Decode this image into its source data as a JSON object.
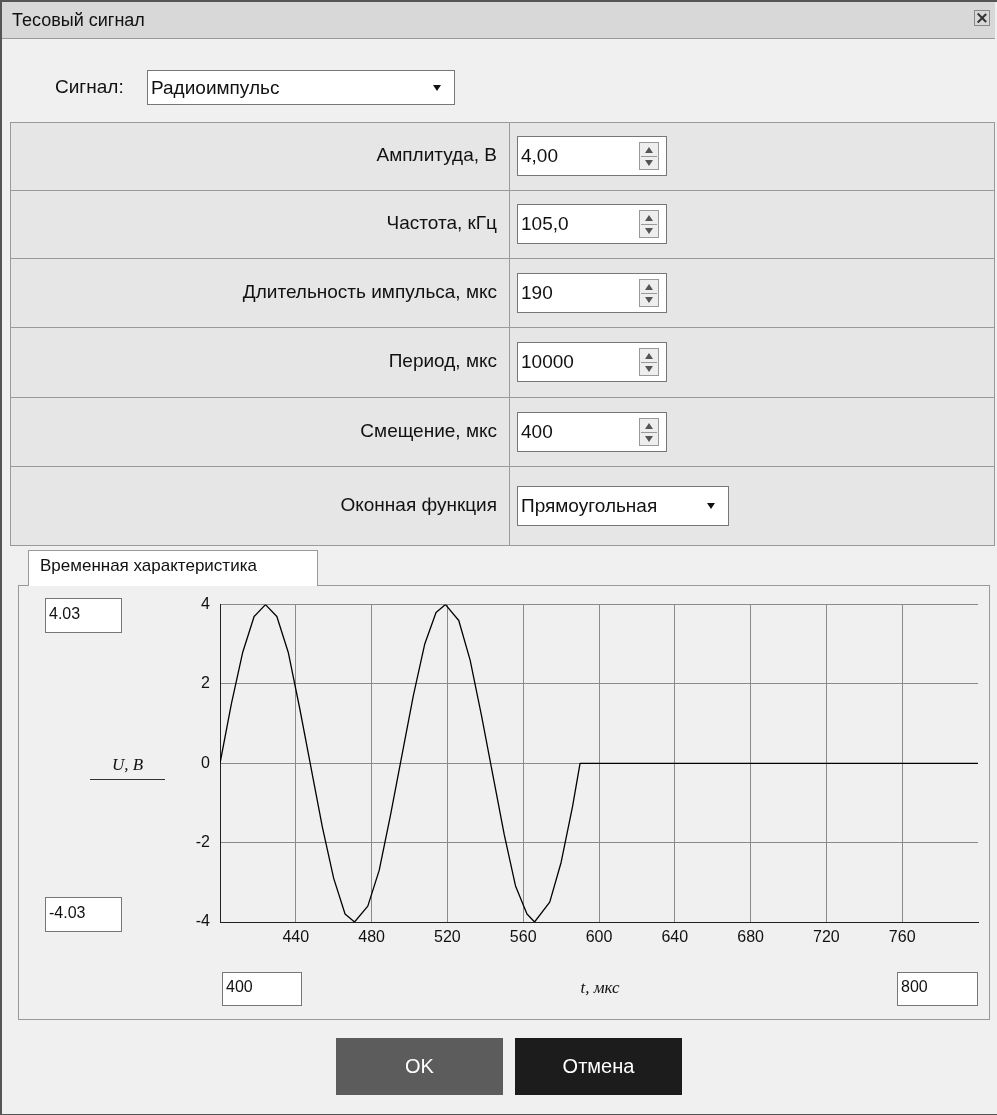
{
  "chart_data": {
    "type": "line",
    "xlabel": "t, мкс",
    "ylabel": "U, В",
    "x": [
      400,
      406,
      412,
      418,
      424,
      430,
      436,
      442,
      448,
      454,
      460,
      466,
      471,
      478,
      484,
      490,
      496,
      502,
      508,
      514,
      519,
      526,
      532,
      538,
      544,
      550,
      556,
      562,
      566,
      574,
      580,
      586,
      590,
      800
    ],
    "series": [
      {
        "color": "#000000",
        "values": [
          0,
          1.5,
          2.8,
          3.7,
          4,
          3.7,
          2.8,
          1.4,
          -0.1,
          -1.6,
          -2.9,
          -3.8,
          -4,
          -3.6,
          -2.7,
          -1.3,
          0.2,
          1.7,
          3,
          3.8,
          4,
          3.6,
          2.6,
          1.2,
          -0.3,
          -1.8,
          -3.1,
          -3.8,
          -4,
          -3.5,
          -2.5,
          -1.1,
          0,
          0
        ]
      }
    ],
    "xlim": [
      400,
      800
    ],
    "ylim": [
      -4,
      4
    ],
    "xticks": [
      440,
      480,
      520,
      560,
      600,
      640,
      680,
      720,
      760
    ],
    "yticks": [
      -4,
      -2,
      0,
      2,
      4
    ],
    "grid": true,
    "marker": "none",
    "line_style": "solid",
    "legend": false,
    "annotations": [
      "Тесовый сигнал",
      "Сигнал:",
      "Радиоимпульс",
      "Амплитуда, В",
      "4,00",
      "Частота, кГц",
      "105,0",
      "Длительность импульса, мкс",
      "190",
      "Период, мкс",
      "10000",
      "Смещение, мкс",
      "400",
      "Оконная функция",
      "Прямоугольная",
      "Временная характеристика",
      "4.03",
      "-4.03",
      "400",
      "800",
      "OK",
      "Отмена"
    ]
  }
}
